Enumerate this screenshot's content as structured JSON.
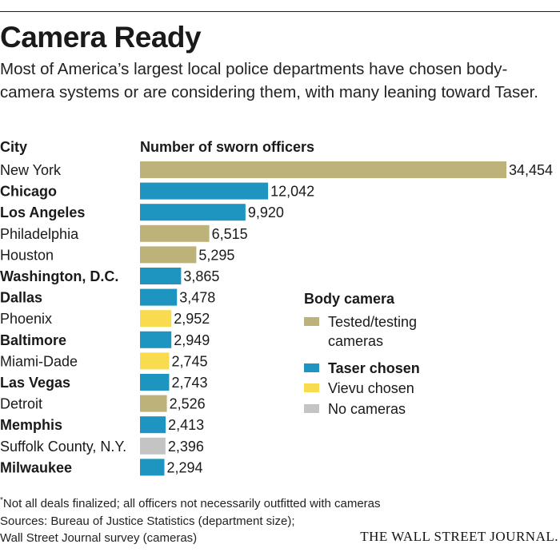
{
  "title": "Camera Ready",
  "subtitle": "Most of America’s largest local police departments have chosen body-camera systems or are considering them, with many leaning toward Taser.",
  "headers": {
    "city": "City",
    "officers": "Number of sworn officers"
  },
  "colors": {
    "testing": "#bdb27a",
    "taser": "#1e95c0",
    "vievu": "#f8db4f",
    "none": "#c4c4c4"
  },
  "legend": {
    "title": "Body camera",
    "items": [
      {
        "key": "testing",
        "label_lines": [
          "Tested/testing",
          "cameras"
        ],
        "bold": false
      },
      {
        "key": "taser",
        "label_lines": [
          "Taser chosen"
        ],
        "bold": true
      },
      {
        "key": "vievu",
        "label_lines": [
          "Vievu chosen"
        ],
        "bold": false
      },
      {
        "key": "none",
        "label_lines": [
          "No cameras"
        ],
        "bold": false
      }
    ]
  },
  "chart_data": {
    "type": "bar",
    "orientation": "horizontal",
    "title": "Camera Ready",
    "xlabel": "Number of sworn officers",
    "ylabel": "City",
    "xlim": [
      0,
      34454
    ],
    "grid": false,
    "legend_position": "right",
    "categories": [
      "New York",
      "Chicago",
      "Los Angeles",
      "Philadelphia",
      "Houston",
      "Washington, D.C.",
      "Dallas",
      "Phoenix",
      "Baltimore",
      "Miami-Dade",
      "Las Vegas",
      "Detroit",
      "Memphis",
      "Suffolk County, N.Y.",
      "Milwaukee"
    ],
    "values": [
      34454,
      12042,
      9920,
      6515,
      5295,
      3865,
      3478,
      2952,
      2949,
      2745,
      2743,
      2526,
      2413,
      2396,
      2294
    ],
    "value_labels": [
      "34,454",
      "12,042",
      "9,920",
      "6,515",
      "5,295",
      "3,865",
      "3,478",
      "2,952",
      "2,949",
      "2,745",
      "2,743",
      "2,526",
      "2,413",
      "2,396",
      "2,294"
    ],
    "camera_status": [
      "testing",
      "taser",
      "taser",
      "testing",
      "testing",
      "taser",
      "taser",
      "vievu",
      "taser",
      "vievu",
      "taser",
      "testing",
      "taser",
      "none",
      "taser"
    ]
  },
  "footnotes": {
    "asterisk": "*",
    "note": "Not all deals finalized; all officers not necessarily outfitted with cameras",
    "sources_line1": "Sources: Bureau of Justice Statistics (department size);",
    "sources_line2": "Wall Street Journal survey (cameras)"
  },
  "brand": "THE WALL STREET JOURNAL."
}
